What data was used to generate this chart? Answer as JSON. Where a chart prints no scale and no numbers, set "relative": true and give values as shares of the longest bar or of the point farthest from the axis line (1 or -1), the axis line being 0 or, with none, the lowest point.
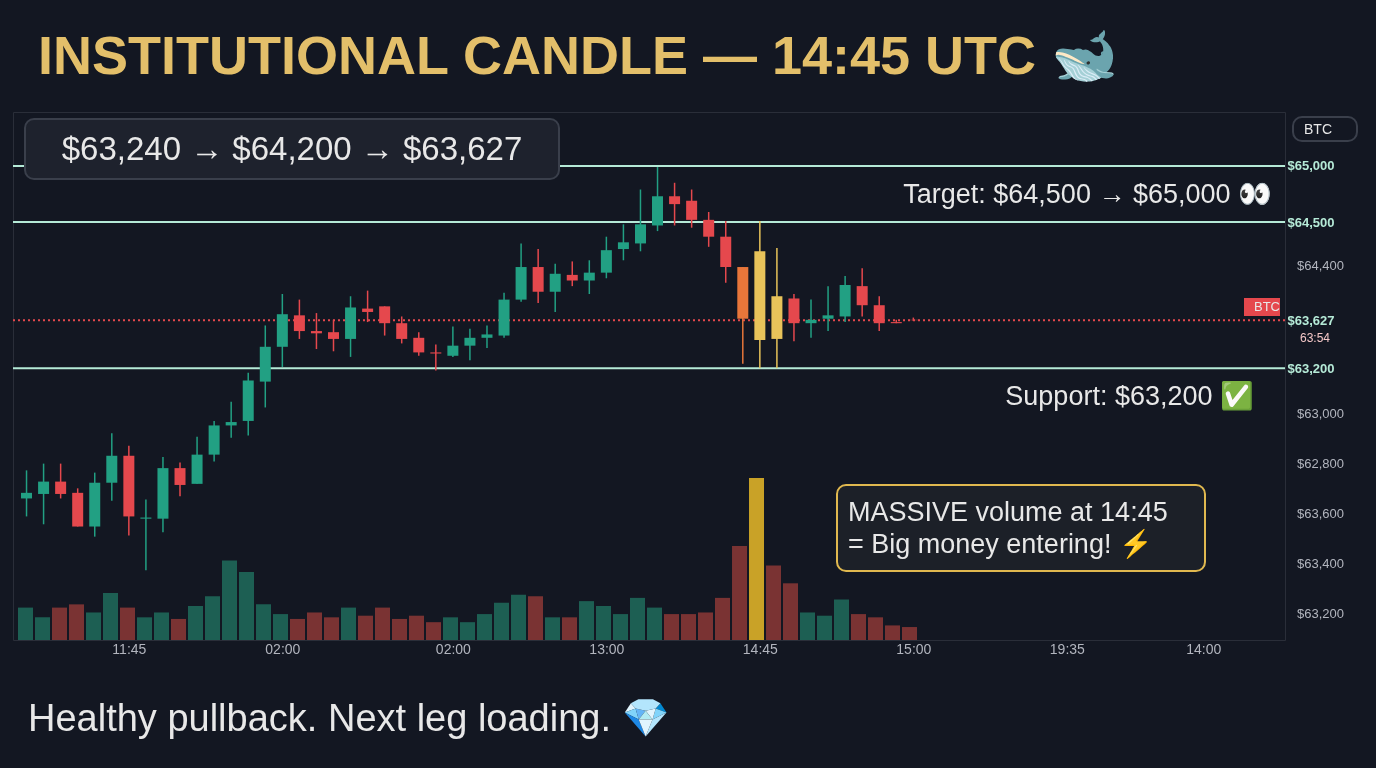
{
  "chart_data": [
    {
      "type": "candlestick",
      "title": "INSTITUTIONAL CANDLE — 14:45 UTC 🐋",
      "categories": [
        null,
        null,
        null,
        null,
        null,
        null,
        "11:45",
        null,
        null,
        null,
        null,
        null,
        null,
        null,
        null,
        "02:00",
        null,
        null,
        null,
        null,
        null,
        null,
        null,
        null,
        null,
        "02:00",
        null,
        null,
        null,
        null,
        null,
        null,
        null,
        null,
        "13:00",
        null,
        null,
        null,
        null,
        null,
        null,
        null,
        null,
        "14:45",
        null,
        null,
        null,
        null,
        null,
        null,
        null,
        null,
        "15:00",
        null,
        null,
        null,
        null,
        null,
        null,
        null,
        null,
        "19:35",
        null,
        null,
        null,
        null,
        null,
        null,
        null,
        "14:00",
        null,
        null,
        null,
        null
      ],
      "ohlc": [
        [
          62040,
          62290,
          61880,
          62090
        ],
        [
          62080,
          62350,
          61810,
          62190
        ],
        [
          62190,
          62350,
          62040,
          62080
        ],
        [
          62090,
          62130,
          61790,
          61790
        ],
        [
          61790,
          62270,
          61700,
          62180
        ],
        [
          62180,
          62620,
          62020,
          62420
        ],
        [
          62420,
          62510,
          61710,
          61880
        ],
        [
          61860,
          62030,
          61400,
          61870
        ],
        [
          61860,
          62410,
          61740,
          62310
        ],
        [
          62310,
          62360,
          62060,
          62160
        ],
        [
          62170,
          62590,
          62170,
          62430
        ],
        [
          62430,
          62730,
          62370,
          62690
        ],
        [
          62690,
          62900,
          62580,
          62720
        ],
        [
          62730,
          63160,
          62600,
          63090
        ],
        [
          63080,
          63580,
          62850,
          63390
        ],
        [
          63390,
          63860,
          63210,
          63680
        ],
        [
          63670,
          63810,
          63460,
          63530
        ],
        [
          63530,
          63690,
          63370,
          63510
        ],
        [
          63520,
          63630,
          63350,
          63460
        ],
        [
          63460,
          63840,
          63300,
          63740
        ],
        [
          63730,
          63890,
          63610,
          63700
        ],
        [
          63750,
          63750,
          63490,
          63600
        ],
        [
          63600,
          63660,
          63420,
          63460
        ],
        [
          63470,
          63520,
          63310,
          63340
        ],
        [
          63340,
          63410,
          63180,
          63330
        ],
        [
          63310,
          63570,
          63300,
          63400
        ],
        [
          63400,
          63550,
          63270,
          63470
        ],
        [
          63470,
          63580,
          63380,
          63500
        ],
        [
          63490,
          63870,
          63470,
          63810
        ],
        [
          63810,
          64310,
          63790,
          64100
        ],
        [
          64100,
          64260,
          63780,
          63880
        ],
        [
          63880,
          64130,
          63700,
          64040
        ],
        [
          64030,
          64150,
          63930,
          63980
        ],
        [
          63980,
          64160,
          63860,
          64050
        ],
        [
          64050,
          64370,
          64000,
          64250
        ],
        [
          64260,
          64480,
          64160,
          64320
        ],
        [
          64310,
          64790,
          64240,
          64480
        ],
        [
          64470,
          64990,
          64420,
          64730
        ],
        [
          64730,
          64850,
          64470,
          64660
        ],
        [
          64690,
          64790,
          64450,
          64520
        ],
        [
          64520,
          64590,
          64280,
          64370
        ],
        [
          64370,
          64510,
          63960,
          64100
        ],
        [
          64100,
          64100,
          63240,
          63640
        ],
        [
          63450,
          64510,
          63200,
          64240
        ],
        [
          63460,
          64270,
          63200,
          63840
        ],
        [
          63820,
          63860,
          63440,
          63600
        ],
        [
          63600,
          63810,
          63470,
          63630
        ],
        [
          63640,
          63930,
          63530,
          63670
        ],
        [
          63660,
          64020,
          63610,
          63940
        ],
        [
          63930,
          64090,
          63660,
          63760
        ],
        [
          63760,
          63840,
          63530,
          63600
        ],
        [
          63610,
          63630,
          63600,
          63600
        ],
        [
          63630,
          63650,
          63620,
          63627
        ],
        null,
        null,
        null,
        null,
        null,
        null,
        null,
        null,
        null,
        null,
        null,
        null,
        null,
        null,
        null,
        null,
        null,
        null,
        null,
        null,
        null
      ],
      "colors": [
        "#22a083",
        "#22a083",
        "#e5484d",
        "#e5484d",
        "#22a083",
        "#22a083",
        "#e5484d",
        "#22a083",
        "#22a083",
        "#e5484d",
        "#22a083",
        "#22a083",
        "#22a083",
        "#22a083",
        "#22a083",
        "#22a083",
        "#e5484d",
        "#e5484d",
        "#e5484d",
        "#22a083",
        "#e5484d",
        "#e5484d",
        "#e5484d",
        "#e5484d",
        "#e5484d",
        "#22a083",
        "#22a083",
        "#22a083",
        "#22a083",
        "#22a083",
        "#e5484d",
        "#22a083",
        "#e5484d",
        "#22a083",
        "#22a083",
        "#22a083",
        "#22a083",
        "#22a083",
        "#e5484d",
        "#e5484d",
        "#e5484d",
        "#e5484d",
        "#e8763a",
        "#e8c35a",
        "#e8c35a",
        "#e5484d",
        "#22a083",
        "#22a083",
        "#22a083",
        "#e5484d",
        "#e5484d",
        "#e5484d",
        "#e5484d",
        null,
        null,
        null,
        null,
        null,
        null,
        null,
        null,
        null,
        null,
        null,
        null,
        null,
        null,
        null,
        null,
        null,
        null,
        null,
        null,
        null
      ],
      "ylim": [
        60780,
        65480
      ],
      "yticks": [
        {
          "value": 65000,
          "label": "$65,000"
        },
        {
          "value": 64500,
          "label": "$64,500"
        },
        {
          "value": 63627,
          "label": "$63,627"
        },
        {
          "value": 63200,
          "label": "$63,200"
        }
      ],
      "ref_lines": [
        {
          "axis": "y",
          "value": 65000,
          "color": "#b5ead7",
          "line_style": "solid"
        },
        {
          "axis": "y",
          "value": 64500,
          "color": "#b5ead7",
          "line_style": "solid"
        },
        {
          "axis": "y",
          "value": 63200,
          "color": "#b5ead7",
          "line_style": "solid"
        },
        {
          "axis": "y",
          "value": 63627,
          "color": "#e5484d",
          "line_style": "dotted"
        }
      ],
      "annotations": [
        "$63,240 → $64,200 → $63,627",
        "Target: $64,500 → $65,000 👀",
        "Support: $63,200 ✅",
        "MASSIVE volume at 14:45\n= Big money entering! ⚡",
        "BTC",
        "BTC",
        "63:54",
        "Healthy pullback. Next leg loading. 💎",
        "$64,400",
        "$63,000",
        "$62,800",
        "$63,600",
        "$63,400",
        "$63,200"
      ]
    },
    {
      "type": "bar",
      "relative": true,
      "categories": [
        null,
        null,
        null,
        null,
        null,
        null,
        null,
        null,
        null,
        null,
        null,
        null,
        null,
        null,
        null,
        null,
        null,
        null,
        null,
        null,
        null,
        null,
        null,
        null,
        null,
        null,
        null,
        null,
        null,
        null,
        null,
        null,
        null,
        null,
        null,
        null,
        null,
        null,
        null,
        null,
        null,
        null,
        null,
        null,
        null,
        null,
        null,
        null,
        null,
        null,
        null,
        null,
        null
      ],
      "values": [
        0.2,
        0.14,
        0.2,
        0.22,
        0.17,
        0.29,
        0.2,
        0.14,
        0.17,
        0.13,
        0.21,
        0.27,
        0.49,
        0.42,
        0.22,
        0.16,
        0.13,
        0.17,
        0.14,
        0.2,
        0.15,
        0.2,
        0.13,
        0.15,
        0.11,
        0.14,
        0.11,
        0.16,
        0.23,
        0.28,
        0.27,
        0.14,
        0.14,
        0.24,
        0.21,
        0.16,
        0.26,
        0.2,
        0.16,
        0.16,
        0.17,
        0.26,
        0.58,
        1,
        0.46,
        0.35,
        0.17,
        0.15,
        0.25,
        0.16,
        0.14,
        0.09,
        0.08
      ],
      "colors": [
        "#1d5f53",
        "#1d5f53",
        "#7a3333",
        "#7a3333",
        "#1d5f53",
        "#1d5f53",
        "#7a3333",
        "#1d5f53",
        "#1d5f53",
        "#7a3333",
        "#1d5f53",
        "#1d5f53",
        "#1d5f53",
        "#1d5f53",
        "#1d5f53",
        "#1d5f53",
        "#7a3333",
        "#7a3333",
        "#7a3333",
        "#1d5f53",
        "#7a3333",
        "#7a3333",
        "#7a3333",
        "#7a3333",
        "#7a3333",
        "#1d5f53",
        "#1d5f53",
        "#1d5f53",
        "#1d5f53",
        "#1d5f53",
        "#7a3333",
        "#1d5f53",
        "#7a3333",
        "#1d5f53",
        "#1d5f53",
        "#1d5f53",
        "#1d5f53",
        "#1d5f53",
        "#7a3333",
        "#7a3333",
        "#7a3333",
        "#7a3333",
        "#7a3333",
        "#c9a227",
        "#7a3333",
        "#7a3333",
        "#1d5f53",
        "#1d5f53",
        "#1d5f53",
        "#7a3333",
        "#7a3333",
        "#7a3333",
        "#7a3333"
      ]
    }
  ]
}
